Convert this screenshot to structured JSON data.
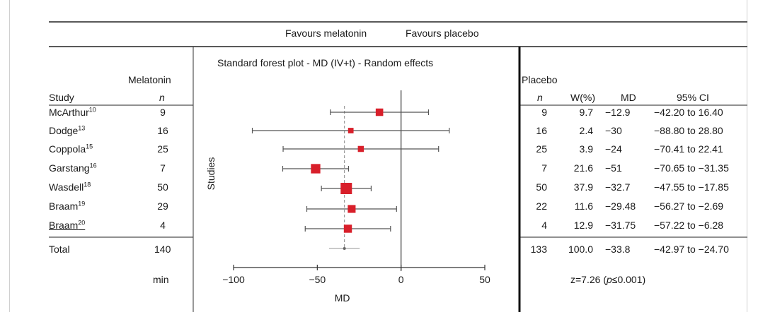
{
  "header": {
    "favours_left": "Favours melatonin",
    "favours_right": "Favours placebo",
    "plot_title": "Standard forest plot - MD (IV+t) - Random effects"
  },
  "columns": {
    "melatonin": "Melatonin",
    "placebo": "Placebo",
    "study": "Study",
    "n_left": "n",
    "n_right": "n",
    "weight": "W(%)",
    "md": "MD",
    "ci": "95% CI"
  },
  "studies": [
    {
      "name": "McArthur",
      "ref": "10",
      "n_mel": "9",
      "n_pla": "9",
      "weight": "9.7",
      "md": "−12.9",
      "ci": "−42.20 to 16.40"
    },
    {
      "name": "Dodge",
      "ref": "13",
      "n_mel": "16",
      "n_pla": "16",
      "weight": "2.4",
      "md": "−30",
      "ci": "−88.80 to 28.80"
    },
    {
      "name": "Coppola",
      "ref": "15",
      "n_mel": "25",
      "n_pla": "25",
      "weight": "3.9",
      "md": "−24",
      "ci": "−70.41 to 22.41"
    },
    {
      "name": "Garstang",
      "ref": "16",
      "n_mel": "7",
      "n_pla": "7",
      "weight": "21.6",
      "md": "−51",
      "ci": "−70.65 to −31.35"
    },
    {
      "name": "Wasdell",
      "ref": "18",
      "n_mel": "50",
      "n_pla": "50",
      "weight": "37.9",
      "md": "−32.7",
      "ci": "−47.55 to −17.85"
    },
    {
      "name": "Braam",
      "ref": "19",
      "n_mel": "29",
      "n_pla": "22",
      "weight": "11.6",
      "md": "−29.48",
      "ci": "−56.27 to −2.69"
    },
    {
      "name": "Braam",
      "ref": "20",
      "n_mel": "4",
      "n_pla": "4",
      "weight": "12.9",
      "md": "−31.75",
      "ci": "−57.22 to −6.28"
    }
  ],
  "total": {
    "label": "Total",
    "n_mel": "140",
    "n_pla": "133",
    "weight": "100.0",
    "md": "−33.8",
    "ci": "−42.97 to −24.70"
  },
  "footer": {
    "min_label": "min",
    "z_prefix": "z=7.26 (",
    "z_p": "p",
    "z_suffix": "≤0.001)"
  },
  "chart_data": {
    "type": "forest",
    "title": "Standard forest plot - MD (IV+t) - Random effects",
    "xlabel": "MD",
    "ylabel": "Studies",
    "xlim": [
      -100,
      50
    ],
    "xticks": [
      -100,
      -50,
      0,
      50
    ],
    "xtick_labels": [
      "−100",
      "−50",
      "0",
      "50"
    ],
    "null_line": 0,
    "pooled_line": -33.8,
    "marker_color": "#d81f2a",
    "line_color": "#555555",
    "points": [
      {
        "study": "McArthur",
        "md": -12.9,
        "lo": -42.2,
        "hi": 16.4,
        "weight": 9.7
      },
      {
        "study": "Dodge",
        "md": -30,
        "lo": -88.8,
        "hi": 28.8,
        "weight": 2.4
      },
      {
        "study": "Coppola",
        "md": -24,
        "lo": -70.41,
        "hi": 22.41,
        "weight": 3.9
      },
      {
        "study": "Garstang",
        "md": -51,
        "lo": -70.65,
        "hi": -31.35,
        "weight": 21.6
      },
      {
        "study": "Wasdell",
        "md": -32.7,
        "lo": -47.55,
        "hi": -17.85,
        "weight": 37.9
      },
      {
        "study": "Braam",
        "md": -29.48,
        "lo": -56.27,
        "hi": -2.69,
        "weight": 11.6
      },
      {
        "study": "Braam",
        "md": -31.75,
        "lo": -57.22,
        "hi": -6.28,
        "weight": 12.9
      }
    ],
    "pooled": {
      "md": -33.8,
      "lo": -42.97,
      "hi": -24.7
    }
  }
}
